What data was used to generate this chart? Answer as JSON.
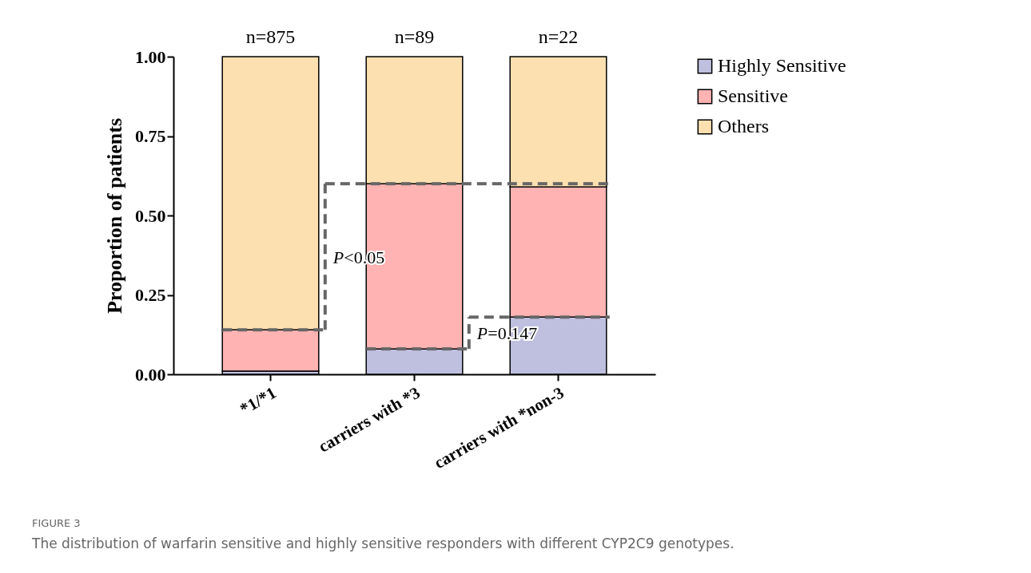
{
  "chart_data": {
    "type": "bar",
    "stacked": true,
    "categories": [
      "*1/*1",
      "carriers with *3",
      "carriers with *non-3"
    ],
    "series": [
      {
        "name": "Highly Sensitive",
        "color": "#bfbfdf",
        "values": [
          0.01,
          0.08,
          0.18
        ]
      },
      {
        "name": "Sensitive",
        "color": "#ffb3b3",
        "values": [
          0.13,
          0.52,
          0.41
        ]
      },
      {
        "name": "Others",
        "color": "#fde0b0",
        "values": [
          0.86,
          0.4,
          0.41
        ]
      }
    ],
    "ylabel": "Proportion of patients",
    "ylim": [
      0,
      1
    ],
    "yticks": [
      {
        "value": 0,
        "label": "0.00"
      },
      {
        "value": 0.25,
        "label": "0.25"
      },
      {
        "value": 0.5,
        "label": "0.50"
      },
      {
        "value": 0.75,
        "label": "0.75"
      },
      {
        "value": 1,
        "label": "1.00"
      }
    ],
    "legend": "top right",
    "grid": false,
    "annotations": [
      {
        "text": "n=875",
        "x": "*1/*1",
        "y": 1
      },
      {
        "text": "n=89",
        "x": "carriers with *3",
        "y": 1
      },
      {
        "text": "n=22",
        "x": "carriers with *non-3",
        "y": 1
      },
      "P<0.05",
      "P=0.147",
      "FIGURE 3",
      "The distribution of warfarin sensitive and highly sensitive responders with different CYP2C9 genotypes."
    ]
  }
}
